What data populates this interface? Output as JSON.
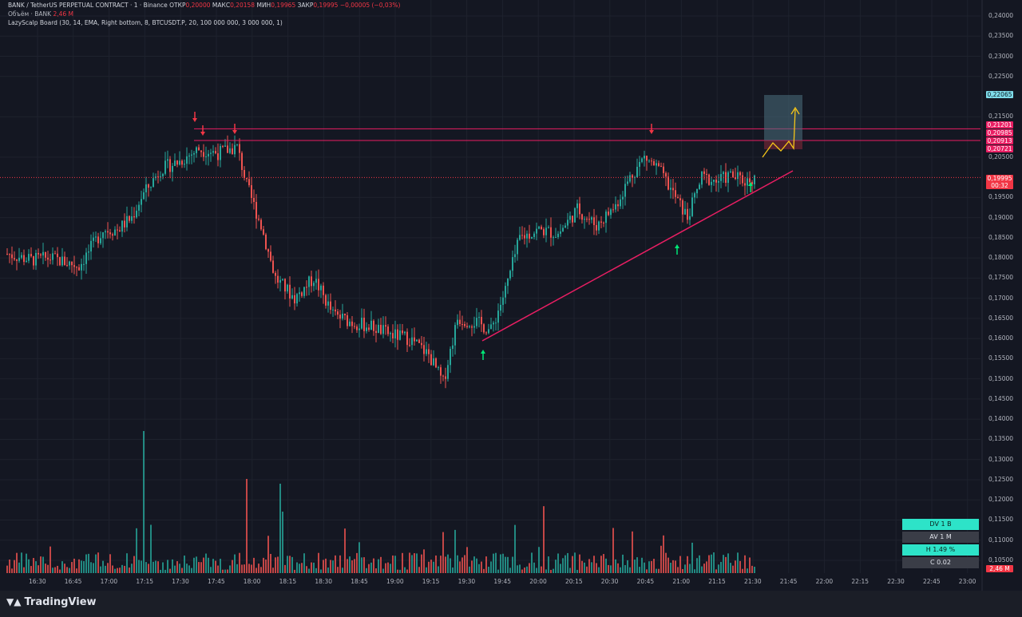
{
  "header": {
    "line1_prefix": "BANK / TetherUS PERPETUAL CONTRACT · 1 · Binance",
    "open_label": "ОТКР",
    "open_value": "0,20000",
    "high_label": "МАКС",
    "high_value": "0,20158",
    "low_label": "МИН",
    "low_value": "0,19965",
    "close_label": "ЗАКР",
    "close_value": "0,19995",
    "change": "−0,00005 (−0,03%)",
    "volume_label": "Объём · BANK",
    "volume_value": "2,46 M",
    "indicator": "LazyScalp Board (30, 14, EMA, Right bottom, 8, BTCUSDT.P, 20, 100 000 000, 3 000 000, 1)"
  },
  "price_tags": {
    "target": "0,22065",
    "r1": "0,21201",
    "r2": "0,20985",
    "r3": "0,20913",
    "r4": "0,20721",
    "current": "0,19995",
    "countdown": "00:32",
    "volume": "2,46 M"
  },
  "stats_board": {
    "dv": "DV 1 B",
    "av": "AV 1 M",
    "h": "H 1.49 %",
    "c": "C  0.02"
  },
  "branding": "TradingView",
  "colors": {
    "up": "#26a69a",
    "down": "#ef5350",
    "trendline": "#e91e63",
    "level": "#e91e63",
    "target_box": "#4b6f7e",
    "projection": "#f5c518",
    "arrow_up": "#00e676",
    "arrow_down": "#f23645",
    "stats_teal": "#2de3c8",
    "stats_gray": "#3a3d47"
  },
  "chart_data": {
    "type": "candlestick",
    "symbol": "BANK / TetherUS PERPETUAL CONTRACT",
    "interval": "1",
    "x_ticks": [
      "16:30",
      "16:45",
      "17:00",
      "17:15",
      "17:30",
      "17:45",
      "18:00",
      "18:15",
      "18:30",
      "18:45",
      "19:00",
      "19:15",
      "19:30",
      "19:45",
      "20:00",
      "20:15",
      "20:30",
      "20:45",
      "21:00",
      "21:15",
      "21:30",
      "21:45",
      "22:00",
      "22:15",
      "22:30",
      "22:45",
      "23:00"
    ],
    "y_ticks": [
      "0,24000",
      "0,23500",
      "0,23000",
      "0,22500",
      "0,21500",
      "0,20500",
      "0,19500",
      "0,19000",
      "0,18500",
      "0,18000",
      "0,17500",
      "0,17000",
      "0,16500",
      "0,16000",
      "0,15500",
      "0,15000",
      "0,14500",
      "0,14000",
      "0,13500",
      "0,13000",
      "0,12500",
      "0,12000",
      "0,11500",
      "0,11000",
      "0,10500"
    ],
    "ylim": [
      0.1035,
      0.2415
    ],
    "price_path": [
      [
        0,
        0.181
      ],
      [
        10,
        0.1795
      ],
      [
        18,
        0.18
      ],
      [
        30,
        0.178
      ],
      [
        40,
        0.187
      ],
      [
        46,
        0.187
      ],
      [
        52,
        0.19
      ],
      [
        56,
        0.195
      ],
      [
        64,
        0.202
      ],
      [
        72,
        0.204
      ],
      [
        80,
        0.207
      ],
      [
        88,
        0.206
      ],
      [
        96,
        0.2075
      ],
      [
        100,
        0.198
      ],
      [
        106,
        0.188
      ],
      [
        112,
        0.175
      ],
      [
        120,
        0.17
      ],
      [
        128,
        0.175
      ],
      [
        136,
        0.166
      ],
      [
        144,
        0.164
      ],
      [
        152,
        0.163
      ],
      [
        160,
        0.161
      ],
      [
        168,
        0.16
      ],
      [
        176,
        0.156
      ],
      [
        182,
        0.149
      ],
      [
        188,
        0.165
      ],
      [
        196,
        0.164
      ],
      [
        202,
        0.162
      ],
      [
        208,
        0.172
      ],
      [
        214,
        0.185
      ],
      [
        222,
        0.187
      ],
      [
        230,
        0.186
      ],
      [
        238,
        0.192
      ],
      [
        246,
        0.188
      ],
      [
        254,
        0.193
      ],
      [
        260,
        0.2
      ],
      [
        266,
        0.205
      ],
      [
        272,
        0.202
      ],
      [
        278,
        0.196
      ],
      [
        284,
        0.19
      ],
      [
        290,
        0.2
      ],
      [
        296,
        0.199
      ],
      [
        302,
        0.2005
      ],
      [
        308,
        0.199
      ],
      [
        312,
        0.1999
      ]
    ],
    "volume_max_millions": 20,
    "levels": [
      0.21201,
      0.20913
    ],
    "last_close": 0.19995,
    "projected_target": 0.22065
  }
}
